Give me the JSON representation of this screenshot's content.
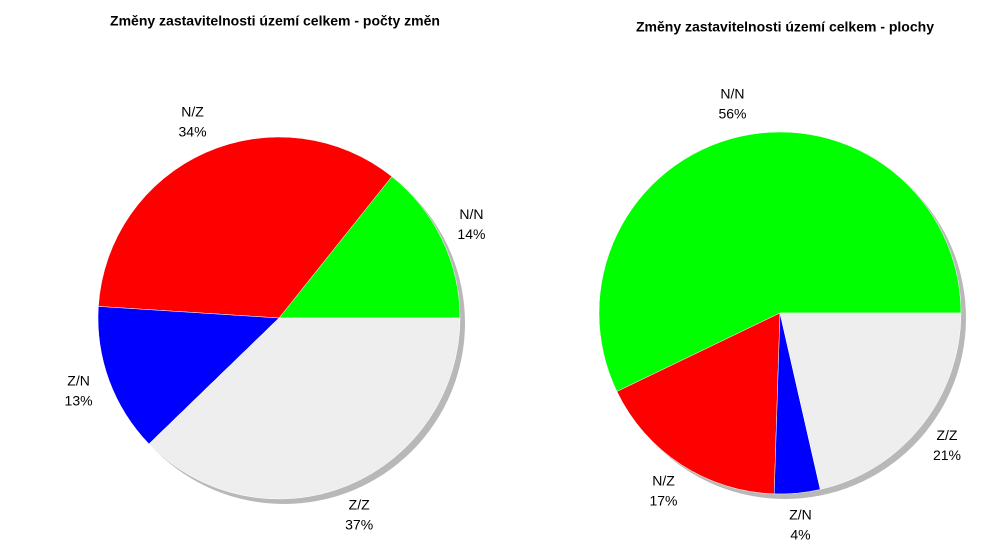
{
  "chart_data": [
    {
      "type": "pie",
      "title": "Změny zastavitelnosti území celkem - počty změn",
      "categories": [
        "N/N",
        "N/Z",
        "Z/N",
        "Z/Z"
      ],
      "values": [
        14,
        34,
        13,
        37
      ],
      "value_labels": [
        "14%",
        "34%",
        "13%",
        "37%"
      ],
      "colors": [
        "#00ff00",
        "#ff0000",
        "#0000ff",
        "#eeeeee"
      ]
    },
    {
      "type": "pie",
      "title": "Změny zastavitelnosti území celkem - plochy",
      "categories": [
        "N/N",
        "N/Z",
        "Z/N",
        "Z/Z"
      ],
      "values": [
        56,
        17,
        4,
        21
      ],
      "value_labels": [
        "56%",
        "17%",
        "4%",
        "21%"
      ],
      "colors": [
        "#00ff00",
        "#ff0000",
        "#0000ff",
        "#eeeeee"
      ]
    }
  ]
}
